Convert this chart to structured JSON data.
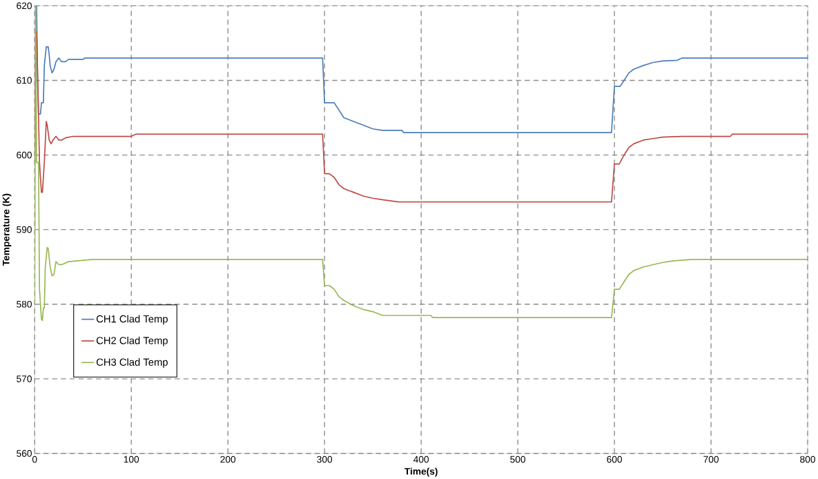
{
  "chart_data": {
    "type": "line",
    "xlabel": "Time(s)",
    "ylabel": "Temperature (K)",
    "xlim": [
      0,
      800
    ],
    "ylim": [
      560,
      620
    ],
    "xticks": [
      0,
      100,
      200,
      300,
      400,
      500,
      600,
      700,
      800
    ],
    "yticks": [
      560,
      570,
      580,
      590,
      600,
      610,
      620
    ],
    "grid": true,
    "legend": "bottom left",
    "marker": "none",
    "line_style": "solid",
    "series": [
      {
        "name": "CH1 Clad Temp",
        "color": "#4a7ebb",
        "x": [
          0,
          2,
          3,
          4,
          6,
          7,
          9,
          10,
          12,
          14,
          15,
          16,
          18,
          20,
          22,
          25,
          28,
          32,
          35,
          50,
          52,
          298,
          300,
          305,
          310,
          315,
          320,
          330,
          340,
          350,
          360,
          380,
          382,
          597,
          600,
          606,
          610,
          615,
          620,
          630,
          640,
          650,
          665,
          670,
          800
        ],
        "values": [
          620,
          620,
          610,
          605.5,
          605.5,
          607,
          607,
          612,
          614.5,
          614.5,
          613.5,
          612,
          611,
          611.5,
          612.5,
          613,
          612.5,
          612.5,
          612.8,
          612.8,
          613,
          613,
          607,
          607,
          607,
          606,
          605,
          604.5,
          604,
          603.5,
          603.3,
          603.3,
          603,
          603,
          609.2,
          609.2,
          610,
          611,
          611.5,
          612,
          612.4,
          612.6,
          612.7,
          613,
          613
        ]
      },
      {
        "name": "CH2 Clad Temp",
        "color": "#be4b48",
        "x": [
          0,
          1,
          2,
          3,
          5,
          7,
          8,
          10,
          12,
          13,
          15,
          17,
          19,
          22,
          25,
          28,
          32,
          40,
          100,
          105,
          298,
          300,
          305,
          310,
          315,
          320,
          330,
          340,
          350,
          360,
          377,
          597,
          600,
          605,
          610,
          615,
          620,
          630,
          640,
          650,
          670,
          720,
          722,
          800
        ],
        "values": [
          599,
          616.5,
          616.5,
          611.5,
          599,
          595,
          595,
          599,
          604.5,
          604,
          602,
          601.5,
          602,
          602.5,
          602,
          602,
          602.3,
          602.5,
          602.5,
          602.8,
          602.8,
          597.5,
          597.5,
          597,
          596,
          595.5,
          595,
          594.5,
          594.2,
          594,
          593.7,
          593.7,
          598.8,
          598.8,
          600,
          601,
          601.5,
          602,
          602.2,
          602.4,
          602.5,
          602.5,
          602.8,
          602.8
        ]
      },
      {
        "name": "CH3 Clad Temp",
        "color": "#98b954",
        "x": [
          0,
          1,
          2,
          4,
          5,
          7,
          8,
          9,
          10,
          11,
          13,
          14,
          16,
          18,
          20,
          22,
          25,
          28,
          35,
          60,
          298,
          300,
          305,
          310,
          315,
          320,
          330,
          340,
          350,
          360,
          410,
          412,
          597,
          600,
          605,
          610,
          615,
          620,
          630,
          640,
          650,
          660,
          680,
          800
        ],
        "values": [
          580,
          620,
          599,
          599,
          582,
          578,
          577.8,
          579.5,
          579.5,
          585,
          587.6,
          587.5,
          585,
          583.8,
          584,
          585.7,
          585.3,
          585.3,
          585.7,
          586,
          586,
          582.5,
          582.5,
          582,
          581,
          580.5,
          579.8,
          579.3,
          579,
          578.5,
          578.5,
          578.2,
          578.2,
          582,
          582,
          583,
          584,
          584.5,
          585,
          585.3,
          585.6,
          585.8,
          586,
          586
        ]
      }
    ]
  }
}
